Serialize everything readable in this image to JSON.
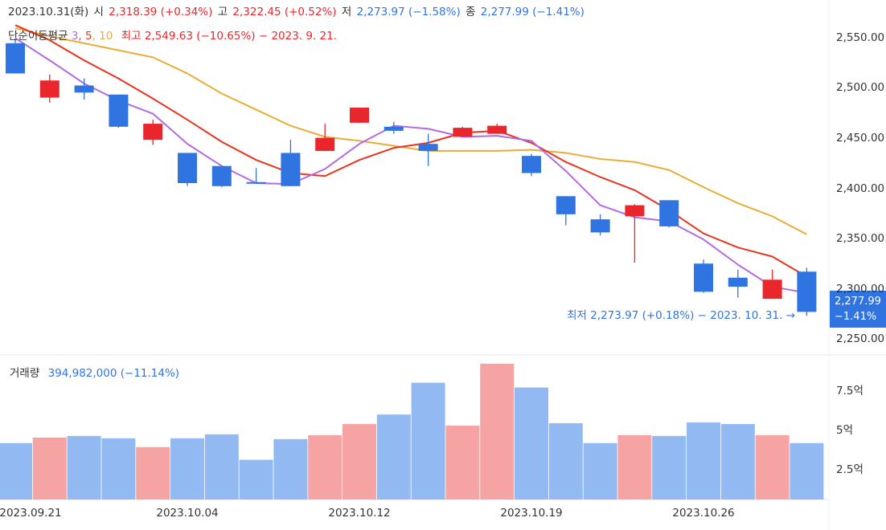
{
  "header": {
    "date": "2023.10.31(화)",
    "open_label": "시",
    "open_value": "2,318.39 (+0.34%)",
    "high_label": "고",
    "high_value": "2,322.45 (+0.52%)",
    "low_label": "저",
    "low_value": "2,273.97 (−1.58%)",
    "close_label": "종",
    "close_value": "2,277.99 (−1.41%)"
  },
  "ma_legend": {
    "label": "단순이동평균",
    "periods": [
      "3",
      "5",
      "10"
    ],
    "high_note": "최고 2,549.63 (−10.65%) − 2023. 9. 21."
  },
  "low_annotation": "최저 2,273.97 (+0.18%) − 2023. 10. 31. →",
  "last_price": {
    "value": "2,277.99",
    "change": "−1.41%"
  },
  "volume_legend": {
    "label": "거래량",
    "value": "394,982,000 (−11.14%)"
  },
  "colors": {
    "up": "#e8262b",
    "down": "#2f74e0",
    "up_volume": "#f5a3a3",
    "down_volume": "#93b9f2",
    "ma3": "#b26be3",
    "ma5": "#e8341f",
    "ma10": "#e8ad35"
  },
  "chart_data": {
    "type": "candlestick",
    "y_ticks": [
      "2,550.00",
      "2,500.00",
      "2,450.00",
      "2,400.00",
      "2,350.00",
      "2,300.00",
      "2,250.00"
    ],
    "y_tick_values": [
      2550,
      2500,
      2450,
      2400,
      2350,
      2300,
      2250
    ],
    "ylim": [
      2240,
      2580
    ],
    "x_ticks": [
      {
        "label": "2023.09.21",
        "index": 0
      },
      {
        "label": "2023.10.04",
        "index": 5
      },
      {
        "label": "2023.10.12",
        "index": 10
      },
      {
        "label": "2023.10.19",
        "index": 15
      },
      {
        "label": "2023.10.26",
        "index": 20
      }
    ],
    "candles": [
      {
        "o": 2545,
        "h": 2550,
        "l": 2515,
        "c": 2515
      },
      {
        "o": 2491,
        "h": 2514,
        "l": 2486,
        "c": 2508
      },
      {
        "o": 2503,
        "h": 2510,
        "l": 2489,
        "c": 2496
      },
      {
        "o": 2494,
        "h": 2494,
        "l": 2461,
        "c": 2462
      },
      {
        "o": 2449,
        "h": 2469,
        "l": 2444,
        "c": 2465
      },
      {
        "o": 2436,
        "h": 2436,
        "l": 2403,
        "c": 2406
      },
      {
        "o": 2423,
        "h": 2423,
        "l": 2402,
        "c": 2403
      },
      {
        "o": 2407,
        "h": 2421,
        "l": 2405,
        "c": 2406
      },
      {
        "o": 2436,
        "h": 2449,
        "l": 2403,
        "c": 2403
      },
      {
        "o": 2438,
        "h": 2465,
        "l": 2438,
        "c": 2451
      },
      {
        "o": 2466,
        "h": 2481,
        "l": 2466,
        "c": 2481
      },
      {
        "o": 2462,
        "h": 2467,
        "l": 2455,
        "c": 2458
      },
      {
        "o": 2445,
        "h": 2455,
        "l": 2423,
        "c": 2438
      },
      {
        "o": 2452,
        "h": 2462,
        "l": 2452,
        "c": 2461
      },
      {
        "o": 2455,
        "h": 2465,
        "l": 2455,
        "c": 2463
      },
      {
        "o": 2433,
        "h": 2435,
        "l": 2413,
        "c": 2416
      },
      {
        "o": 2393,
        "h": 2393,
        "l": 2364,
        "c": 2375
      },
      {
        "o": 2370,
        "h": 2375,
        "l": 2354,
        "c": 2357
      },
      {
        "o": 2373,
        "h": 2385,
        "l": 2327,
        "c": 2384
      },
      {
        "o": 2389,
        "h": 2389,
        "l": 2362,
        "c": 2363
      },
      {
        "o": 2326,
        "h": 2330,
        "l": 2297,
        "c": 2298
      },
      {
        "o": 2312,
        "h": 2320,
        "l": 2292,
        "c": 2303
      },
      {
        "o": 2291,
        "h": 2320,
        "l": 2291,
        "c": 2310
      },
      {
        "o": 2318,
        "h": 2322,
        "l": 2274,
        "c": 2278
      }
    ],
    "ma3": [
      2550,
      2528,
      2505,
      2488,
      2475,
      2445,
      2423,
      2406,
      2405,
      2420,
      2445,
      2463,
      2460,
      2452,
      2453,
      2448,
      2418,
      2384,
      2372,
      2368,
      2350,
      2325,
      2303,
      2297
    ],
    "ma5": [
      2563,
      2548,
      2528,
      2510,
      2490,
      2469,
      2447,
      2429,
      2416,
      2413,
      2429,
      2441,
      2446,
      2456,
      2458,
      2446,
      2427,
      2412,
      2399,
      2379,
      2356,
      2342,
      2333,
      2313
    ],
    "ma10": [
      2560,
      2552,
      2545,
      2538,
      2531,
      2515,
      2495,
      2479,
      2463,
      2452,
      2448,
      2443,
      2438,
      2438,
      2438,
      2439,
      2436,
      2430,
      2427,
      2419,
      2402,
      2386,
      2373,
      2355
    ],
    "volume_ticks": [
      "7.5억",
      "5억",
      "2.5억"
    ],
    "volume_tick_values": [
      7.5,
      5,
      2.5
    ],
    "volume_ylim": [
      0.5,
      9.5
    ],
    "volumes": [
      4.05,
      4.4,
      4.5,
      4.35,
      3.8,
      4.35,
      4.6,
      3.0,
      4.3,
      4.55,
      5.25,
      5.85,
      7.85,
      5.15,
      9.05,
      7.55,
      5.3,
      4.05,
      4.55,
      4.5,
      5.35,
      5.25,
      4.55,
      4.05
    ]
  }
}
